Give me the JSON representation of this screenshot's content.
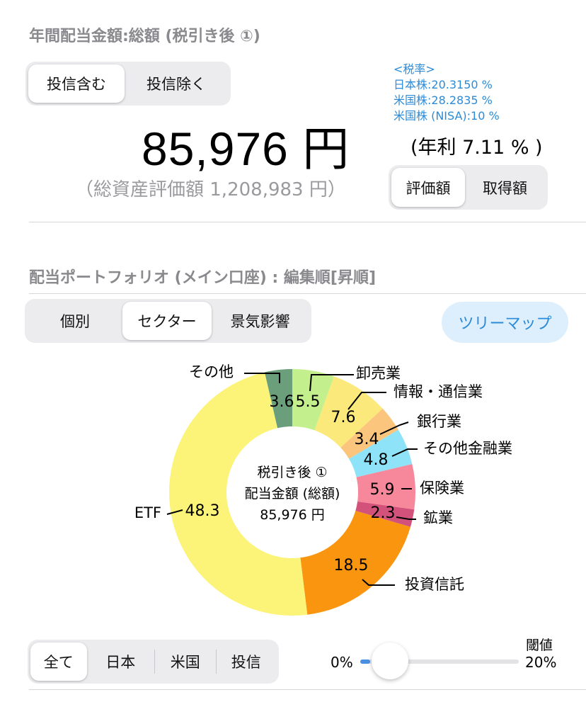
{
  "header": {
    "title": "年間配当金額:総額 (税引き後 ①)"
  },
  "fund_toggle": {
    "options": [
      "投信含む",
      "投信除く"
    ],
    "selected": 0
  },
  "tax_rates": {
    "heading": "<税率>",
    "lines": [
      "日本株:20.3150 %",
      "米国株:28.2835 %",
      "米国株 (NISA):10 %"
    ]
  },
  "summary": {
    "amount": "85,976 円",
    "yield": "(年利 7.11 % )",
    "total_assets": "（総資産評価額 1,208,983 円）"
  },
  "valuation_toggle": {
    "options": [
      "評価額",
      "取得額"
    ],
    "selected": 0
  },
  "portfolio": {
    "title": "配当ポートフォリオ (メイン口座) : 編集順[昇順]",
    "view_tabs": [
      "個別",
      "セクター",
      "景気影響"
    ],
    "selected_tab": 1,
    "treemap_button": "ツリーマップ"
  },
  "chart_center": {
    "line1": "税引き後 ①",
    "line2": "配当金額 (総額)",
    "line3": "85,976 円"
  },
  "chart_data": {
    "type": "pie",
    "donut": true,
    "slices": [
      {
        "label": "卸売業",
        "value": 5.5,
        "color": "#c3f08c"
      },
      {
        "label": "情報・通信業",
        "value": 7.6,
        "color": "#fbe97c"
      },
      {
        "label": "銀行業",
        "value": 3.4,
        "color": "#fcc57e"
      },
      {
        "label": "その他金融業",
        "value": 4.8,
        "color": "#8ee3f8"
      },
      {
        "label": "保険業",
        "value": 5.9,
        "color": "#f7889b"
      },
      {
        "label": "鉱業",
        "value": 2.3,
        "color": "#d2527c"
      },
      {
        "label": "投資信託",
        "value": 18.5,
        "color": "#fa9510"
      },
      {
        "label": "ETF",
        "value": 48.3,
        "color": "#fcf479"
      },
      {
        "label": "その他",
        "value": 3.6,
        "color": "#6b9f7c"
      }
    ]
  },
  "region_filter": {
    "options": [
      "全て",
      "日本",
      "米国",
      "投信"
    ],
    "selected": 0
  },
  "threshold": {
    "label": "閾値",
    "min_label": "0%",
    "max_label": "20%",
    "value_fraction": 0.0
  }
}
